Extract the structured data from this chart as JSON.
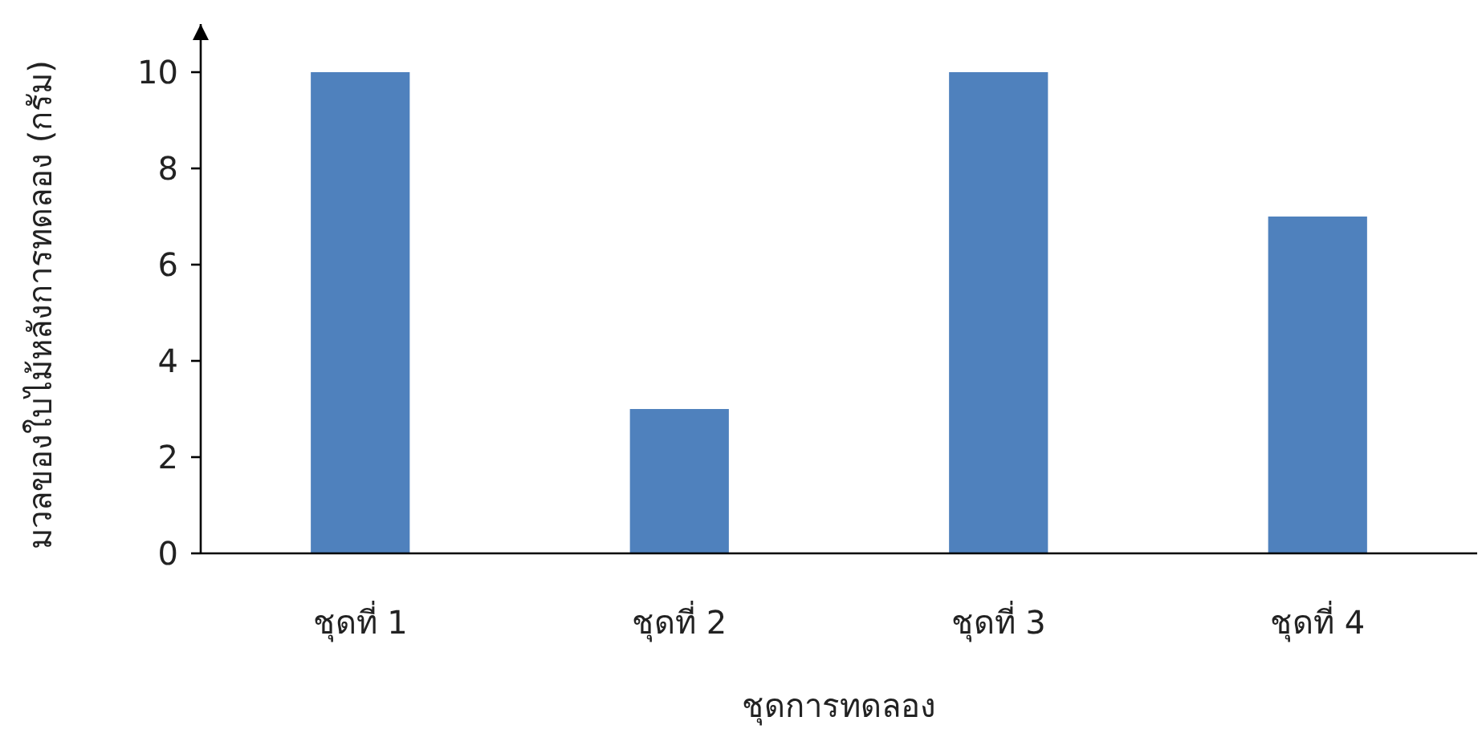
{
  "chart_data": {
    "type": "bar",
    "categories": [
      "ชุดที่ 1",
      "ชุดที่ 2",
      "ชุดที่ 3",
      "ชุดที่ 4"
    ],
    "values": [
      10,
      3,
      10,
      7
    ],
    "color": "#4f81bd",
    "xlabel": "ชุดการทดลอง",
    "ylabel": "มวลของใบไม้หลังการทดลอง (กรัม)",
    "ylim": [
      0,
      11
    ],
    "yticks": [
      0,
      2,
      4,
      6,
      8,
      10
    ],
    "grid": false
  }
}
